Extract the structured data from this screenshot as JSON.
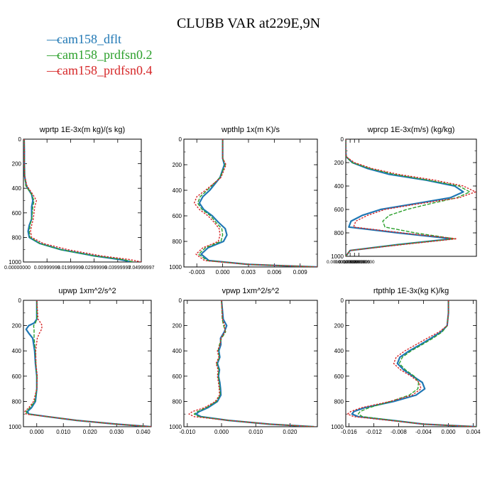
{
  "title": "CLUBB VAR at229E,9N",
  "legend": [
    {
      "label": "cam158_dflt",
      "color": "#1f77b4"
    },
    {
      "label": "cam158_prdfsn0.2",
      "color": "#2ca02c"
    },
    {
      "label": "cam158_prdfsn0.4",
      "color": "#d62728"
    }
  ],
  "chart_data": [
    {
      "type": "line",
      "title": "wprtp  1E-3x(m kg)/(s kg)",
      "xlim": [
        0,
        0.05
      ],
      "ylim": [
        1000,
        0
      ],
      "xticks": [
        "0.00000000",
        "0.00999999",
        "0.01999999",
        "0.02999999",
        "0.03999997",
        "0.04999997"
      ],
      "xtick_values": [
        0,
        0.01,
        0.02,
        0.03,
        0.04,
        0.05
      ],
      "yticks": [
        "0",
        "200",
        "400",
        "600",
        "800",
        "1000"
      ],
      "y": [
        0,
        100,
        200,
        300,
        380,
        450,
        500,
        550,
        600,
        650,
        700,
        750,
        800,
        850,
        900,
        950,
        980,
        1000
      ],
      "series": [
        {
          "x": [
            0.0003,
            0.0004,
            0.0004,
            0.0005,
            0.0012,
            0.0035,
            0.004,
            0.0035,
            0.0035,
            0.0035,
            0.0025,
            0.002,
            0.0025,
            0.007,
            0.016,
            0.03,
            0.041,
            0.046
          ]
        },
        {
          "x": [
            0.0003,
            0.0004,
            0.0004,
            0.0005,
            0.001,
            0.0035,
            0.0045,
            0.004,
            0.0038,
            0.0035,
            0.0028,
            0.0025,
            0.0028,
            0.007,
            0.016,
            0.03,
            0.042,
            0.047
          ]
        },
        {
          "x": [
            0.0003,
            0.0004,
            0.0004,
            0.0005,
            0.0015,
            0.004,
            0.0055,
            0.0048,
            0.0045,
            0.0042,
            0.0035,
            0.003,
            0.0035,
            0.0085,
            0.019,
            0.033,
            0.045,
            0.05
          ]
        }
      ]
    },
    {
      "type": "line",
      "title": "wpthlp  1x(m K)/s",
      "xlim": [
        -0.0045,
        0.011
      ],
      "ylim": [
        1000,
        0
      ],
      "xticks": [
        "-0.003",
        "0.000",
        "0.003",
        "0.006",
        "0.009"
      ],
      "xtick_values": [
        -0.003,
        0,
        0.003,
        0.006,
        0.009
      ],
      "yticks": [
        "0",
        "200",
        "400",
        "600",
        "800",
        "1000"
      ],
      "y": [
        0,
        150,
        200,
        300,
        400,
        450,
        500,
        550,
        600,
        650,
        700,
        750,
        800,
        850,
        900,
        950,
        980,
        1000
      ],
      "series": [
        {
          "x": [
            0,
            0,
            0.0002,
            -0.0003,
            -0.0015,
            -0.0023,
            -0.0027,
            -0.0022,
            -0.0012,
            -0.0005,
            0.0003,
            0.0005,
            0.0001,
            -0.0017,
            -0.0025,
            -0.0016,
            0.003,
            0.011
          ]
        },
        {
          "x": [
            0,
            0,
            0.0003,
            -0.0003,
            -0.0018,
            -0.0026,
            -0.0029,
            -0.0024,
            -0.0014,
            -0.0008,
            -0.0001,
            0,
            -0.0002,
            -0.002,
            -0.0028,
            -0.0018,
            0.003,
            0.011
          ]
        },
        {
          "x": [
            0,
            0,
            0.0004,
            -0.0002,
            -0.002,
            -0.003,
            -0.0033,
            -0.0027,
            -0.0017,
            -0.001,
            -0.0004,
            -0.0003,
            -0.0005,
            -0.0023,
            -0.0031,
            -0.0021,
            0.003,
            0.011
          ]
        }
      ]
    },
    {
      "type": "line",
      "title": "wprcp  1E-3x(m/s) (kg/kg)",
      "xlim": [
        0,
        0.03
      ],
      "ylim": [
        1000,
        0
      ],
      "xticks": [
        "0.00000000000",
        "0.00100000000",
        "0.00199999999",
        "0.00300000000"
      ],
      "xtick_values": [
        0,
        0.001,
        0.002,
        0.003
      ],
      "yticks": [
        "0",
        "200",
        "400",
        "600",
        "800",
        "1000"
      ],
      "y": [
        0,
        100,
        150,
        200,
        250,
        300,
        350,
        400,
        450,
        500,
        550,
        600,
        650,
        700,
        750,
        800,
        850,
        900,
        950,
        1000
      ],
      "series": [
        {
          "x": [
            0,
            0,
            0.0001,
            0.0015,
            0.005,
            0.01,
            0.0185,
            0.025,
            0.027,
            0.024,
            0.016,
            0.008,
            0.0038,
            0.0012,
            0.0007,
            0.012,
            0.0245,
            0.012,
            0.001,
            0
          ]
        },
        {
          "x": [
            0,
            0,
            0.0001,
            0.0015,
            0.0055,
            0.011,
            0.019,
            0.026,
            0.0285,
            0.0255,
            0.0195,
            0.014,
            0.01,
            0.0085,
            0.009,
            0.016,
            0.025,
            0.012,
            0.001,
            0
          ]
        },
        {
          "x": [
            0,
            0,
            0.0001,
            0.002,
            0.006,
            0.012,
            0.0205,
            0.027,
            0.0298,
            0.026,
            0.017,
            0.009,
            0.005,
            0.0023,
            0.0018,
            0.013,
            0.0255,
            0.013,
            0.001,
            0
          ]
        }
      ]
    },
    {
      "type": "line",
      "title": "upwp   1xm^2/s^2",
      "xlim": [
        -0.005,
        0.043
      ],
      "ylim": [
        1000,
        0
      ],
      "xticks": [
        "0.000",
        "0.010",
        "0.020",
        "0.030",
        "0.040"
      ],
      "xtick_values": [
        0,
        0.01,
        0.02,
        0.03,
        0.04
      ],
      "yticks": [
        "0",
        "200",
        "400",
        "600",
        "800",
        "1000"
      ],
      "y": [
        0,
        150,
        180,
        200,
        230,
        260,
        300,
        400,
        500,
        600,
        700,
        800,
        850,
        880,
        900,
        920,
        950,
        980,
        1000
      ],
      "series": [
        {
          "x": [
            0,
            0,
            -0.001,
            -0.003,
            -0.004,
            -0.003,
            -0.0015,
            -0.0008,
            -0.0005,
            0,
            0,
            -0.0005,
            -0.002,
            -0.0035,
            -0.003,
            0.004,
            0.015,
            0.03,
            0.043
          ]
        },
        {
          "x": [
            0,
            0,
            -0.0005,
            -0.0012,
            -0.001,
            -0.001,
            -0.001,
            -0.0005,
            -0.0003,
            0,
            0,
            -0.0008,
            -0.0025,
            -0.004,
            -0.0035,
            0.004,
            0.015,
            0.03,
            0.043
          ]
        },
        {
          "x": [
            0,
            0.0005,
            0.0015,
            0.002,
            0.0018,
            0.001,
            0.0002,
            -0.0004,
            -0.0003,
            0.0002,
            0,
            -0.0012,
            -0.003,
            -0.0045,
            -0.004,
            0.004,
            0.015,
            0.03,
            0.043
          ]
        }
      ]
    },
    {
      "type": "line",
      "title": "vpwp   1xm^2/s^2",
      "xlim": [
        -0.011,
        0.028
      ],
      "ylim": [
        1000,
        0
      ],
      "xticks": [
        "-0.010",
        "0.000",
        "0.010",
        "0.020"
      ],
      "xtick_values": [
        -0.01,
        0,
        0.01,
        0.02
      ],
      "yticks": [
        "0",
        "200",
        "400",
        "600",
        "800",
        "1000"
      ],
      "y": [
        0,
        150,
        200,
        250,
        300,
        350,
        400,
        450,
        500,
        550,
        600,
        650,
        700,
        750,
        800,
        850,
        880,
        900,
        920,
        950,
        980,
        1000
      ],
      "series": [
        {
          "x": [
            0,
            0.0005,
            0.0015,
            0.0008,
            -0.0003,
            -0.0002,
            -0.0008,
            -0.0005,
            -0.0012,
            -0.0006,
            -0.0009,
            -0.0005,
            -0.0003,
            -0.0002,
            -0.0012,
            -0.004,
            -0.0065,
            -0.0075,
            -0.006,
            0.002,
            0.014,
            0.027
          ]
        },
        {
          "x": [
            0,
            0.0002,
            0.0006,
            0.0012,
            0,
            -0.0006,
            -0.001,
            -0.0006,
            -0.0014,
            -0.0008,
            -0.001,
            -0.0007,
            -0.0005,
            -0.0004,
            -0.0015,
            -0.0045,
            -0.007,
            -0.008,
            -0.0065,
            0.002,
            0.014,
            0.027
          ]
        },
        {
          "x": [
            0,
            0.0003,
            0.0009,
            0.001,
            -0.0002,
            -0.0004,
            -0.0012,
            -0.0008,
            -0.0016,
            -0.001,
            -0.0012,
            -0.0009,
            -0.0007,
            -0.0006,
            -0.0018,
            -0.005,
            -0.0085,
            -0.0095,
            -0.008,
            0.002,
            0.014,
            0.027
          ]
        }
      ]
    },
    {
      "type": "line",
      "title": "rtpthlp   1E-3x(kg K)/kg",
      "xlim": [
        -0.0165,
        0.0045
      ],
      "ylim": [
        1000,
        0
      ],
      "xticks": [
        "-0.016",
        "-0.012",
        "-0.008",
        "-0.004",
        "0.000",
        "0.004"
      ],
      "xtick_values": [
        -0.016,
        -0.012,
        -0.008,
        -0.004,
        0,
        0.004
      ],
      "yticks": [
        "0",
        "200",
        "400",
        "600",
        "800",
        "1000"
      ],
      "y": [
        0,
        100,
        200,
        250,
        300,
        350,
        400,
        450,
        500,
        550,
        600,
        650,
        700,
        750,
        800,
        850,
        880,
        900,
        920,
        950,
        980,
        1000
      ],
      "series": [
        {
          "x": [
            0,
            0,
            -0.0002,
            -0.0012,
            -0.0028,
            -0.0045,
            -0.0063,
            -0.0078,
            -0.0082,
            -0.0072,
            -0.0057,
            -0.0042,
            -0.0038,
            -0.0052,
            -0.0088,
            -0.0135,
            -0.0152,
            -0.0155,
            -0.0145,
            -0.009,
            -0.004,
            0.0045
          ]
        },
        {
          "x": [
            0,
            0,
            -0.0002,
            -0.001,
            -0.0025,
            -0.0042,
            -0.006,
            -0.0074,
            -0.0079,
            -0.0069,
            -0.0055,
            -0.0048,
            -0.0049,
            -0.0063,
            -0.0093,
            -0.0128,
            -0.0142,
            -0.0145,
            -0.0138,
            -0.009,
            -0.004,
            0.0045
          ]
        },
        {
          "x": [
            0,
            0,
            -0.0002,
            -0.0015,
            -0.0034,
            -0.0052,
            -0.007,
            -0.0084,
            -0.0088,
            -0.0077,
            -0.006,
            -0.0047,
            -0.0044,
            -0.0058,
            -0.0094,
            -0.014,
            -0.0157,
            -0.0162,
            -0.0152,
            -0.0095,
            -0.004,
            0.0045
          ]
        }
      ]
    }
  ]
}
